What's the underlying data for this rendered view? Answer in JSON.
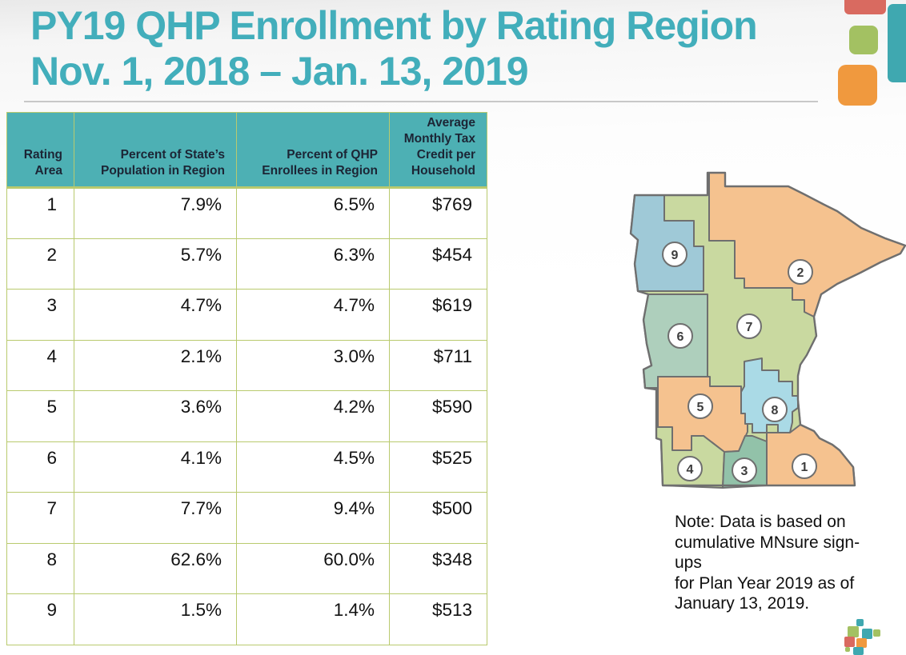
{
  "slide": {
    "title_line1": "PY19 QHP Enrollment by Rating Region",
    "title_line2": "Nov. 1, 2018 – Jan. 13, 2019",
    "note": "Note:  Data is based on\ncumulative MNsure sign-ups\nfor Plan Year 2019 as of\nJanuary 13, 2019."
  },
  "table": {
    "headers": [
      "Rating Area",
      "Percent of State’s Population in Region",
      "Percent of QHP Enrollees in Region",
      "Average Monthly Tax Credit per Household"
    ],
    "rows": [
      {
        "rating_area": "1",
        "percent_population": "7.9%",
        "percent_enrollees": "6.5%",
        "avg_tax_credit": "$769"
      },
      {
        "rating_area": "2",
        "percent_population": "5.7%",
        "percent_enrollees": "6.3%",
        "avg_tax_credit": "$454"
      },
      {
        "rating_area": "3",
        "percent_population": "4.7%",
        "percent_enrollees": "4.7%",
        "avg_tax_credit": "$619"
      },
      {
        "rating_area": "4",
        "percent_population": "2.1%",
        "percent_enrollees": "3.0%",
        "avg_tax_credit": "$711"
      },
      {
        "rating_area": "5",
        "percent_population": "3.6%",
        "percent_enrollees": "4.2%",
        "avg_tax_credit": "$590"
      },
      {
        "rating_area": "6",
        "percent_population": "4.1%",
        "percent_enrollees": "4.5%",
        "avg_tax_credit": "$525"
      },
      {
        "rating_area": "7",
        "percent_population": "7.7%",
        "percent_enrollees": "9.4%",
        "avg_tax_credit": "$500"
      },
      {
        "rating_area": "8",
        "percent_population": "62.6%",
        "percent_enrollees": "60.0%",
        "avg_tax_credit": "$348"
      },
      {
        "rating_area": "9",
        "percent_population": "1.5%",
        "percent_enrollees": "1.4%",
        "avg_tax_credit": "$513"
      }
    ]
  },
  "map": {
    "regions": [
      "1",
      "2",
      "3",
      "4",
      "5",
      "6",
      "7",
      "8",
      "9"
    ]
  },
  "colors": {
    "title_teal": "#42aebb",
    "table_header_bg": "#4db0b4",
    "table_border": "#b9ca6e",
    "map_orange": "#f5c28f",
    "map_light_green": "#c9d9a0",
    "map_blue": "#9fc9d7",
    "map_light_blue": "#aadae6",
    "map_sage": "#aecfbc",
    "map_dark_sage": "#92c2a9",
    "map_outline": "#6f6f6f",
    "deco_red": "#d96a60",
    "deco_teal": "#3fa8b0",
    "deco_green": "#a3c162",
    "deco_orange": "#f0993e"
  }
}
